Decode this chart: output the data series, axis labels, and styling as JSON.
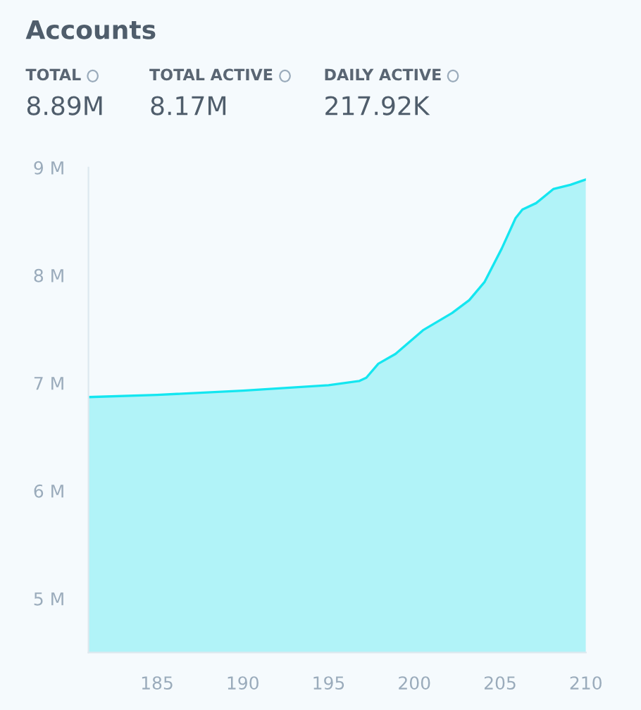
{
  "chart_data": {
    "type": "area",
    "title": "Accounts",
    "annotations": [
      "TOTAL",
      "TOTAL ACTIVE",
      "DAILY ACTIVE",
      "8.89M",
      "8.17M",
      "217.92K"
    ],
    "x": [
      181,
      185,
      190,
      195,
      196.8,
      197.2,
      197.9,
      198.9,
      200.5,
      202.2,
      203.2,
      204.1,
      205.1,
      205.9,
      206.3,
      207.1,
      208.1,
      209.1,
      210
    ],
    "series": [
      {
        "color": "#14e6f0",
        "values": [
          6.87,
          6.89,
          6.93,
          6.98,
          7.02,
          7.05,
          7.18,
          7.27,
          7.49,
          7.65,
          7.77,
          7.94,
          8.25,
          8.53,
          8.61,
          8.67,
          8.8,
          8.84,
          8.89
        ]
      }
    ],
    "xlim": [
      181,
      210
    ],
    "ylim": [
      4.5,
      9
    ],
    "xticks": [
      185,
      190,
      195,
      200,
      205,
      210
    ],
    "yticks": [
      {
        "value": 5,
        "label": "5 M"
      },
      {
        "value": 6,
        "label": "6 M"
      },
      {
        "value": 7,
        "label": "7 M"
      },
      {
        "value": 8,
        "label": "8 M"
      },
      {
        "value": 9,
        "label": "9 M"
      }
    ],
    "grid": false
  }
}
